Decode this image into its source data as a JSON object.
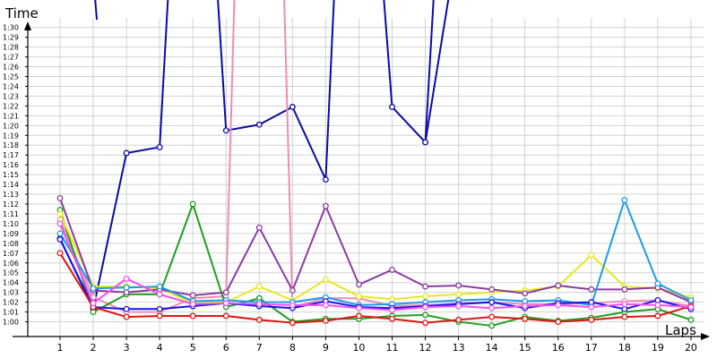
{
  "chart_data": {
    "type": "line",
    "ylabel": "Time",
    "xlabel": "Laps",
    "x": [
      1,
      2,
      3,
      4,
      5,
      6,
      7,
      8,
      9,
      10,
      11,
      12,
      13,
      14,
      15,
      16,
      17,
      18,
      19,
      20
    ],
    "x_tick_labels": [
      "1",
      "2",
      "3",
      "4",
      "5",
      "6",
      "7",
      "8",
      "9",
      "10",
      "11",
      "12",
      "13",
      "14",
      "15",
      "16",
      "17",
      "18",
      "19",
      "20"
    ],
    "y_unit": "seconds",
    "y_tick_labels": [
      "1:00",
      "1:01",
      "1:02",
      "1:03",
      "1:04",
      "1:05",
      "1:06",
      "1:07",
      "1:08",
      "1:09",
      "1:10",
      "1:11",
      "1:12",
      "1:13",
      "1:14",
      "1:15",
      "1:16",
      "1:17",
      "1:18",
      "1:19",
      "1:20",
      "1:21",
      "1:22",
      "1:23",
      "1:24",
      "1:25",
      "1:26",
      "1:27",
      "1:28",
      "1:29",
      "1:30"
    ],
    "y_tick_values": [
      60,
      61,
      62,
      63,
      64,
      65,
      66,
      67,
      68,
      69,
      70,
      71,
      72,
      73,
      74,
      75,
      76,
      77,
      78,
      79,
      80,
      81,
      82,
      83,
      84,
      85,
      86,
      87,
      88,
      89,
      90
    ],
    "ylim": [
      58.5,
      92.8
    ],
    "grid": true,
    "legend": "none",
    "series": [
      {
        "color": "#0a0aa8",
        "values": [
          68.5,
          61.3,
          77.2,
          77.8,
          null,
          79.5,
          80.1,
          81.9,
          74.5,
          null,
          81.9,
          78.3,
          null,
          null,
          null,
          null,
          null,
          null,
          null,
          null
        ],
        "offscale": [
          [
            null,
            null
          ],
          [
            1,
            2
          ],
          [
            3,
            4
          ],
          [
            4,
            5
          ],
          [
            5,
            6
          ],
          [
            8,
            9
          ],
          [
            9,
            10
          ],
          [
            10,
            11
          ],
          [
            11,
            12
          ],
          [
            12,
            13
          ]
        ]
      },
      {
        "color": "#f08cb4",
        "values": [
          70.4,
          62.5,
          61.0,
          61.0,
          62.4,
          62.6,
          null,
          61.5,
          62.4,
          62.4,
          61.6,
          61.7,
          61.9,
          62.0,
          61.8,
          61.8,
          61.9,
          62.1,
          62.2,
          61.6
        ],
        "offscale": [
          [
            5,
            6
          ],
          [
            6,
            7
          ]
        ]
      },
      {
        "color": "#1ea01e",
        "values": [
          71.4,
          61.0,
          62.8,
          62.8,
          72.0,
          61.5,
          62.4,
          60.0,
          60.3,
          60.3,
          60.6,
          60.7,
          60.0,
          59.6,
          60.5,
          60.1,
          60.4,
          61.0,
          61.3,
          60.2
        ]
      },
      {
        "color": "#e8e81e",
        "values": [
          71.0,
          63.6,
          63.6,
          63.4,
          61.9,
          62.0,
          63.6,
          62.2,
          64.3,
          62.6,
          62.3,
          62.6,
          62.8,
          63.0,
          63.2,
          63.6,
          66.8,
          63.6,
          63.4,
          62.5
        ]
      },
      {
        "color": "#8c3ca0",
        "values": [
          72.6,
          63.2,
          63.0,
          63.3,
          62.7,
          63.0,
          69.6,
          63.2,
          71.8,
          63.8,
          65.3,
          63.6,
          63.7,
          63.3,
          62.9,
          63.7,
          63.3,
          63.3,
          63.5,
          62.0
        ]
      },
      {
        "color": "#1e9be6",
        "values": [
          69.0,
          63.4,
          63.5,
          63.6,
          62.1,
          62.2,
          62.0,
          62.0,
          62.5,
          61.7,
          61.8,
          62.0,
          62.2,
          62.3,
          62.1,
          62.2,
          61.7,
          72.4,
          63.9,
          62.2
        ]
      },
      {
        "color": "#1414f0",
        "values": [
          68.4,
          61.5,
          61.3,
          61.3,
          61.6,
          61.9,
          61.6,
          61.4,
          62.1,
          61.5,
          61.4,
          61.6,
          61.8,
          62.0,
          61.4,
          61.9,
          62.0,
          61.3,
          62.2,
          61.3
        ]
      },
      {
        "color": "#e11414",
        "values": [
          67.0,
          61.5,
          60.5,
          60.6,
          60.6,
          60.6,
          60.2,
          59.9,
          60.1,
          60.6,
          60.3,
          59.9,
          60.2,
          60.5,
          60.3,
          60.0,
          60.2,
          60.5,
          60.6,
          61.6
        ]
      },
      {
        "color": "#f050f0",
        "values": [
          70.0,
          61.9,
          64.4,
          62.8,
          61.8,
          61.9,
          61.8,
          61.7,
          61.7,
          61.4,
          61.2,
          61.5,
          61.6,
          61.4,
          61.6,
          61.7,
          61.5,
          61.8,
          61.7,
          61.5
        ]
      }
    ]
  }
}
